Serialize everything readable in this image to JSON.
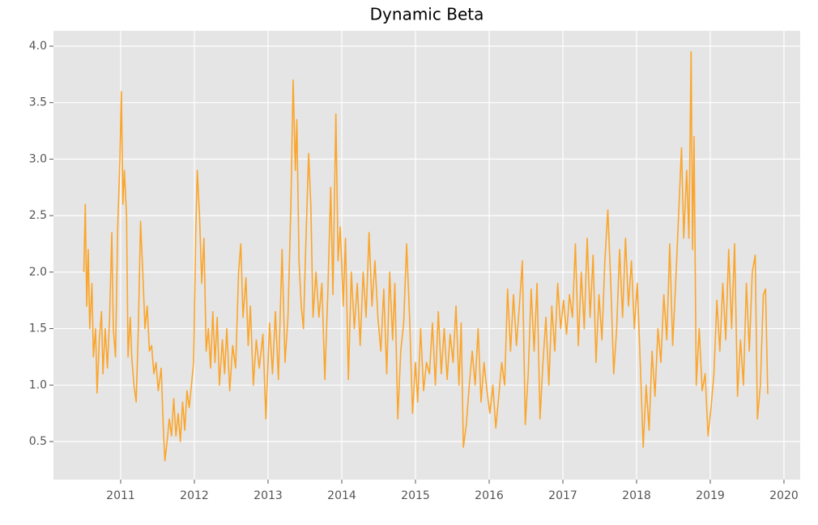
{
  "chart_data": {
    "type": "line",
    "title": "Dynamic Beta",
    "color": "#fba52b",
    "grid": true,
    "xlim": [
      2010.088,
      2020.22
    ],
    "ylim": [
      0.163,
      4.136
    ],
    "xticks": [
      2011,
      2012,
      2013,
      2014,
      2015,
      2016,
      2017,
      2018,
      2019,
      2020
    ],
    "yticks": [
      0.5,
      {
        "value": 1,
        "label": "1.0"
      },
      1.5,
      {
        "value": 2,
        "label": "2.0"
      },
      2.5,
      {
        "value": 3,
        "label": "3.0"
      },
      3.5,
      {
        "value": 4,
        "label": "4.0"
      }
    ],
    "x": [
      2010.5,
      2010.52,
      2010.54,
      2010.56,
      2010.58,
      2010.61,
      2010.63,
      2010.66,
      2010.68,
      2010.71,
      2010.74,
      2010.76,
      2010.79,
      2010.82,
      2010.85,
      2010.88,
      2010.9,
      2010.93,
      2010.96,
      2010.99,
      2011.01,
      2011.03,
      2011.05,
      2011.08,
      2011.1,
      2011.13,
      2011.15,
      2011.18,
      2011.21,
      2011.24,
      2011.27,
      2011.3,
      2011.33,
      2011.36,
      2011.39,
      2011.42,
      2011.45,
      2011.48,
      2011.51,
      2011.55,
      2011.58,
      2011.6,
      2011.63,
      2011.66,
      2011.69,
      2011.72,
      2011.75,
      2011.78,
      2011.81,
      2011.84,
      2011.87,
      2011.9,
      2011.93,
      2011.96,
      2011.99,
      2012.02,
      2012.04,
      2012.07,
      2012.1,
      2012.13,
      2012.16,
      2012.19,
      2012.22,
      2012.25,
      2012.28,
      2012.31,
      2012.34,
      2012.38,
      2012.41,
      2012.44,
      2012.48,
      2012.52,
      2012.56,
      2012.6,
      2012.63,
      2012.66,
      2012.7,
      2012.73,
      2012.76,
      2012.8,
      2012.84,
      2012.88,
      2012.93,
      2012.97,
      2013.02,
      2013.06,
      2013.1,
      2013.14,
      2013.19,
      2013.23,
      2013.27,
      2013.31,
      2013.34,
      2013.37,
      2013.39,
      2013.42,
      2013.45,
      2013.48,
      2013.51,
      2013.55,
      2013.58,
      2013.61,
      2013.65,
      2013.69,
      2013.73,
      2013.77,
      2013.81,
      2013.85,
      2013.88,
      2013.92,
      2013.95,
      2013.98,
      2014.02,
      2014.05,
      2014.09,
      2014.13,
      2014.17,
      2014.21,
      2014.25,
      2014.29,
      2014.33,
      2014.37,
      2014.41,
      2014.45,
      2014.49,
      2014.53,
      2014.57,
      2014.61,
      2014.65,
      2014.69,
      2014.72,
      2014.76,
      2014.8,
      2014.84,
      2014.88,
      2014.92,
      2014.96,
      2015.0,
      2015.03,
      2015.07,
      2015.11,
      2015.15,
      2015.19,
      2015.23,
      2015.27,
      2015.31,
      2015.35,
      2015.39,
      2015.43,
      2015.47,
      2015.51,
      2015.55,
      2015.59,
      2015.62,
      2015.65,
      2015.69,
      2015.73,
      2015.77,
      2015.81,
      2015.85,
      2015.89,
      2015.93,
      2015.97,
      2016.01,
      2016.05,
      2016.09,
      2016.13,
      2016.17,
      2016.21,
      2016.25,
      2016.29,
      2016.33,
      2016.37,
      2016.41,
      2016.45,
      2016.49,
      2016.53,
      2016.57,
      2016.61,
      2016.65,
      2016.69,
      2016.73,
      2016.77,
      2016.81,
      2016.85,
      2016.89,
      2016.93,
      2016.97,
      2017.01,
      2017.05,
      2017.09,
      2017.13,
      2017.17,
      2017.21,
      2017.25,
      2017.29,
      2017.33,
      2017.37,
      2017.41,
      2017.45,
      2017.49,
      2017.53,
      2017.57,
      2017.61,
      2017.65,
      2017.69,
      2017.73,
      2017.77,
      2017.81,
      2017.85,
      2017.89,
      2017.93,
      2017.97,
      2018.01,
      2018.05,
      2018.09,
      2018.13,
      2018.17,
      2018.21,
      2018.25,
      2018.29,
      2018.33,
      2018.37,
      2018.41,
      2018.45,
      2018.49,
      2018.53,
      2018.57,
      2018.61,
      2018.64,
      2018.68,
      2018.71,
      2018.74,
      2018.76,
      2018.78,
      2018.81,
      2018.85,
      2018.89,
      2018.93,
      2018.97,
      2019.01,
      2019.05,
      2019.09,
      2019.13,
      2019.17,
      2019.21,
      2019.25,
      2019.29,
      2019.33,
      2019.37,
      2019.41,
      2019.45,
      2019.49,
      2019.53,
      2019.57,
      2019.61,
      2019.64,
      2019.68,
      2019.72,
      2019.75,
      2019.78
    ],
    "values": [
      2.0,
      2.6,
      1.7,
      2.2,
      1.5,
      1.9,
      1.25,
      1.5,
      0.93,
      1.4,
      1.65,
      1.1,
      1.5,
      1.15,
      1.6,
      2.35,
      1.5,
      1.25,
      2.4,
      3.0,
      3.6,
      2.6,
      2.9,
      2.5,
      1.25,
      1.6,
      1.25,
      1.0,
      0.85,
      1.5,
      2.45,
      2.0,
      1.5,
      1.7,
      1.3,
      1.35,
      1.1,
      1.2,
      0.95,
      1.15,
      0.6,
      0.33,
      0.5,
      0.7,
      0.55,
      0.88,
      0.55,
      0.75,
      0.5,
      0.85,
      0.6,
      0.95,
      0.8,
      1.0,
      1.2,
      2.4,
      2.9,
      2.5,
      1.9,
      2.3,
      1.3,
      1.5,
      1.15,
      1.65,
      1.2,
      1.6,
      1.0,
      1.4,
      1.1,
      1.5,
      0.95,
      1.35,
      1.15,
      2.0,
      2.25,
      1.6,
      1.95,
      1.35,
      1.7,
      1.0,
      1.4,
      1.15,
      1.45,
      0.7,
      1.55,
      1.1,
      1.65,
      1.05,
      2.2,
      1.2,
      1.6,
      2.6,
      3.7,
      2.9,
      3.35,
      2.1,
      1.7,
      1.5,
      2.2,
      3.05,
      2.6,
      1.6,
      2.0,
      1.6,
      1.9,
      1.05,
      1.8,
      2.75,
      1.8,
      3.4,
      2.1,
      2.4,
      1.7,
      2.3,
      1.05,
      2.0,
      1.5,
      1.9,
      1.35,
      2.0,
      1.6,
      2.35,
      1.7,
      2.1,
      1.6,
      1.3,
      1.85,
      1.1,
      2.0,
      1.4,
      1.9,
      0.7,
      1.3,
      1.55,
      2.25,
      1.6,
      0.75,
      1.2,
      0.85,
      1.5,
      0.95,
      1.2,
      1.1,
      1.55,
      1.0,
      1.65,
      1.1,
      1.5,
      1.05,
      1.45,
      1.2,
      1.7,
      1.0,
      1.55,
      0.45,
      0.65,
      1.0,
      1.3,
      1.0,
      1.5,
      0.85,
      1.2,
      0.95,
      0.75,
      1.0,
      0.62,
      0.9,
      1.2,
      1.0,
      1.85,
      1.3,
      1.8,
      1.35,
      1.7,
      2.1,
      0.65,
      1.1,
      1.85,
      1.3,
      1.9,
      0.7,
      1.2,
      1.6,
      1.0,
      1.7,
      1.3,
      1.9,
      1.5,
      1.75,
      1.45,
      1.8,
      1.6,
      2.25,
      1.35,
      2.0,
      1.5,
      2.3,
      1.6,
      2.15,
      1.2,
      1.8,
      1.4,
      2.1,
      2.55,
      1.9,
      1.1,
      1.5,
      2.2,
      1.6,
      2.3,
      1.7,
      2.1,
      1.5,
      1.9,
      1.2,
      0.45,
      1.0,
      0.6,
      1.3,
      0.9,
      1.5,
      1.2,
      1.8,
      1.4,
      2.25,
      1.35,
      1.9,
      2.5,
      3.1,
      2.3,
      2.9,
      2.3,
      3.95,
      2.2,
      3.2,
      1.0,
      1.5,
      0.95,
      1.1,
      0.55,
      0.8,
      1.1,
      1.75,
      1.3,
      1.9,
      1.4,
      2.2,
      1.5,
      2.25,
      0.9,
      1.4,
      1.0,
      1.9,
      1.3,
      2.0,
      2.15,
      0.7,
      1.0,
      1.8,
      1.85,
      0.92
    ]
  }
}
